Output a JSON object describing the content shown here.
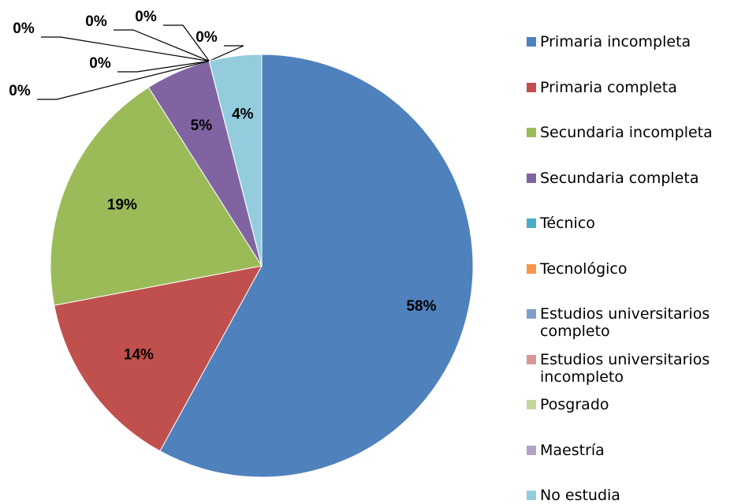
{
  "chart_data": {
    "type": "pie",
    "categories": [
      "Primaria incompleta",
      "Primaria completa",
      "Secundaria incompleta",
      "Secundaria completa",
      "Técnico",
      "Tecnológico",
      "Estudios universitarios completo",
      "Estudios universitarios incompleto",
      "Posgrado",
      "Maestría",
      "No estudia"
    ],
    "values": [
      58,
      14,
      19,
      5,
      0,
      0,
      0,
      0,
      0,
      0,
      4
    ],
    "value_labels": [
      "58%",
      "14%",
      "19%",
      "5%",
      "0%",
      "0%",
      "0%",
      "0%",
      "0%",
      "0%",
      "4%"
    ],
    "colors": [
      "#4f81bd",
      "#c0504d",
      "#9bbb59",
      "#8064a2",
      "#4bacc6",
      "#f79646",
      "#7f9fc7",
      "#d99694",
      "#c3d69b",
      "#b3a2c7",
      "#93cddd"
    ],
    "legend": "right"
  }
}
